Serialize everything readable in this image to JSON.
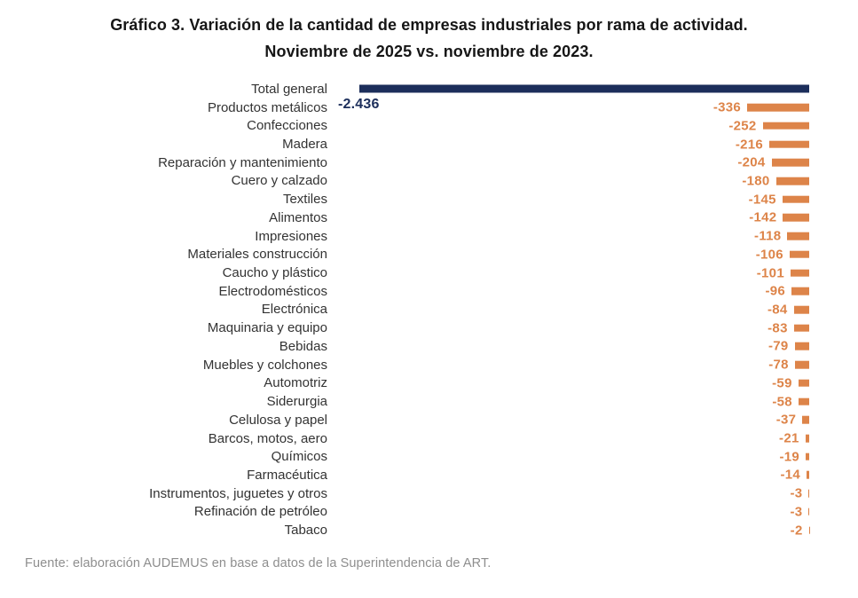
{
  "title": {
    "line1": "Gráfico 3. Variación de la cantidad de empresas industriales por rama de actividad.",
    "line2": "Noviembre de 2025 vs. noviembre de 2023."
  },
  "source": "Fuente: elaboración AUDEMUS en base a datos de la Superintendencia de ART.",
  "chart_data": {
    "type": "bar",
    "orientation": "horizontal",
    "title": "Gráfico 3. Variación de la cantidad de empresas industriales por rama de actividad. Noviembre de 2025 vs. noviembre de 2023.",
    "xlabel": "",
    "ylabel": "",
    "value_range": [
      -2436,
      0
    ],
    "grid": false,
    "legend": false,
    "categories": [
      "Total general",
      "Productos metálicos",
      "Confecciones",
      "Madera",
      "Reparación y mantenimiento",
      "Cuero y calzado",
      "Textiles",
      "Alimentos",
      "Impresiones",
      "Materiales construcción",
      "Caucho y plástico",
      "Electrodomésticos",
      "Electrónica",
      "Maquinaria y equipo",
      "Bebidas",
      "Muebles y colchones",
      "Automotriz",
      "Siderurgia",
      "Celulosa y papel",
      "Barcos, motos, aero",
      "Químicos",
      "Farmacéutica",
      "Instrumentos, juguetes y otros",
      "Refinación de petróleo",
      "Tabaco"
    ],
    "values": [
      -2436,
      -336,
      -252,
      -216,
      -204,
      -180,
      -145,
      -142,
      -118,
      -106,
      -101,
      -96,
      -84,
      -83,
      -79,
      -78,
      -59,
      -58,
      -37,
      -21,
      -19,
      -14,
      -3,
      -3,
      -2
    ],
    "value_labels": [
      "-2.436",
      "-336",
      "-252",
      "-216",
      "-204",
      "-180",
      "-145",
      "-142",
      "-118",
      "-106",
      "-101",
      "-96",
      "-84",
      "-83",
      "-79",
      "-78",
      "-59",
      "-58",
      "-37",
      "-21",
      "-19",
      "-14",
      "-3",
      "-3",
      "-2"
    ],
    "colors": {
      "total_bar": "#1c2e5b",
      "total_value_text": "#1c2e5b",
      "bar": "#dd8449",
      "value_text": "#dd8449",
      "category_text": "#333333",
      "title_text": "#161616",
      "source_text": "#8e8e8e",
      "background": "#ffffff"
    }
  }
}
